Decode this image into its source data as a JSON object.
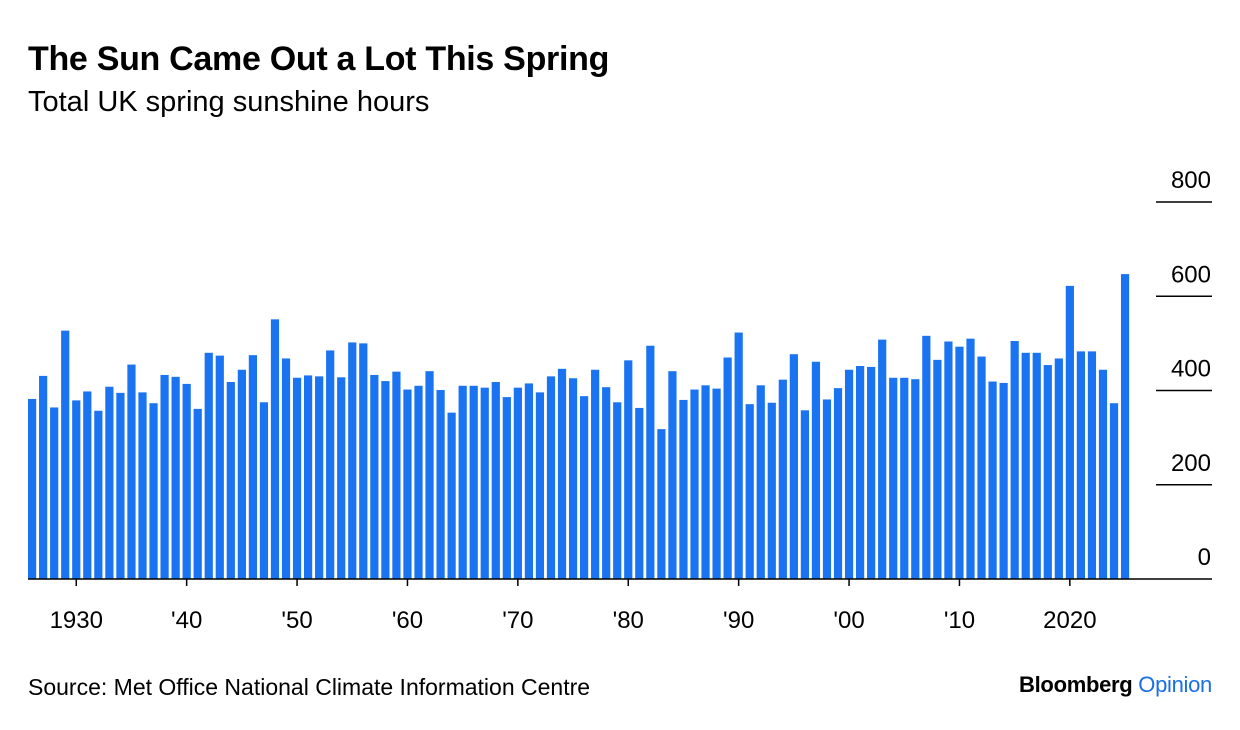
{
  "header": {
    "title": "The Sun Came Out a Lot This Spring",
    "subtitle": "Total UK spring sunshine hours"
  },
  "footer": {
    "source": "Source: Met Office National Climate Information Centre",
    "brand_name": "Bloomberg",
    "brand_section": "Opinion"
  },
  "colors": {
    "bar": "#1a73f0",
    "axis": "#000000"
  },
  "chart_data": {
    "type": "bar",
    "title": "The Sun Came Out a Lot This Spring",
    "subtitle": "Total UK spring sunshine hours",
    "ylim": [
      0,
      800
    ],
    "y_ticks": [
      0,
      200,
      400,
      600,
      800
    ],
    "y_tick_labels": [
      "0",
      "200",
      "400",
      "600",
      "800"
    ],
    "y_axis_side": "right",
    "x_ticks": [
      1930,
      1940,
      1950,
      1960,
      1970,
      1980,
      1990,
      2000,
      2010,
      2020
    ],
    "x_tick_labels": [
      "1930",
      "'40",
      "'50",
      "'60",
      "'70",
      "'80",
      "'90",
      "'00",
      "'10",
      "2020"
    ],
    "grid": false,
    "categories": [
      1926,
      1927,
      1928,
      1929,
      1930,
      1931,
      1932,
      1933,
      1934,
      1935,
      1936,
      1937,
      1938,
      1939,
      1940,
      1941,
      1942,
      1943,
      1944,
      1945,
      1946,
      1947,
      1948,
      1949,
      1950,
      1951,
      1952,
      1953,
      1954,
      1955,
      1956,
      1957,
      1958,
      1959,
      1960,
      1961,
      1962,
      1963,
      1964,
      1965,
      1966,
      1967,
      1968,
      1969,
      1970,
      1971,
      1972,
      1973,
      1974,
      1975,
      1976,
      1977,
      1978,
      1979,
      1980,
      1981,
      1982,
      1983,
      1984,
      1985,
      1986,
      1987,
      1988,
      1989,
      1990,
      1991,
      1992,
      1993,
      1994,
      1995,
      1996,
      1997,
      1998,
      1999,
      2000,
      2001,
      2002,
      2003,
      2004,
      2005,
      2006,
      2007,
      2008,
      2009,
      2010,
      2011,
      2012,
      2013,
      2014,
      2015,
      2016,
      2017,
      2018,
      2019,
      2020,
      2021,
      2022,
      2023,
      2024,
      2025
    ],
    "values": [
      382,
      431,
      364,
      527,
      379,
      398,
      357,
      408,
      395,
      455,
      396,
      373,
      433,
      429,
      414,
      361,
      480,
      474,
      418,
      444,
      475,
      375,
      551,
      468,
      427,
      432,
      430,
      485,
      428,
      502,
      500,
      433,
      420,
      440,
      402,
      410,
      441,
      401,
      353,
      410,
      410,
      406,
      418,
      386,
      406,
      415,
      396,
      430,
      446,
      426,
      388,
      444,
      407,
      375,
      464,
      363,
      495,
      318,
      441,
      380,
      402,
      411,
      404,
      470,
      523,
      371,
      411,
      374,
      423,
      477,
      358,
      461,
      381,
      405,
      444,
      452,
      450,
      508,
      427,
      427,
      424,
      516,
      465,
      504,
      493,
      510,
      472,
      419,
      416,
      505,
      480,
      480,
      454,
      468,
      622,
      483,
      483,
      444,
      373,
      647
    ]
  }
}
